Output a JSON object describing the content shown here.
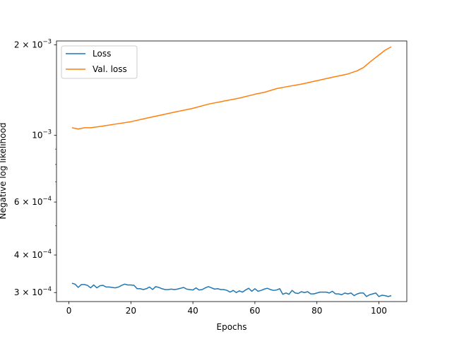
{
  "chart_data": {
    "type": "line",
    "xlabel": "Epochs",
    "ylabel": "Negative log likelihood",
    "yscale": "log",
    "xlim": [
      -4,
      109
    ],
    "ylim": [
      0.00028,
      0.00206
    ],
    "grid": false,
    "legend_position": "top-left",
    "x_ticks": [
      0,
      20,
      40,
      60,
      80,
      100
    ],
    "x_tick_labels": [
      "0",
      "20",
      "40",
      "60",
      "80",
      "100"
    ],
    "y_ticks": [
      0.0003,
      0.0004,
      0.0006,
      0.001,
      0.002
    ],
    "y_tick_labels": [
      {
        "base": "3 × 10",
        "exp": "−4"
      },
      {
        "base": "4 × 10",
        "exp": "−4"
      },
      {
        "base": "6 × 10",
        "exp": "−4"
      },
      {
        "base": "10",
        "exp": "−3"
      },
      {
        "base": "2 × 10",
        "exp": "−3"
      }
    ],
    "y_minor_ticks": [
      0.0005,
      0.0007,
      0.0008,
      0.0009
    ],
    "series": [
      {
        "name": "Loss",
        "color": "#1f77b4",
        "x": [
          1,
          2,
          3,
          4,
          5,
          6,
          7,
          8,
          9,
          10,
          11,
          12,
          13,
          14,
          15,
          16,
          17,
          18,
          19,
          20,
          21,
          22,
          23,
          24,
          25,
          26,
          27,
          28,
          29,
          30,
          31,
          32,
          33,
          34,
          35,
          36,
          37,
          38,
          39,
          40,
          41,
          42,
          43,
          44,
          45,
          46,
          47,
          48,
          49,
          50,
          51,
          52,
          53,
          54,
          55,
          56,
          57,
          58,
          59,
          60,
          61,
          62,
          63,
          64,
          65,
          66,
          67,
          68,
          69,
          70,
          71,
          72,
          73,
          74,
          75,
          76,
          77,
          78,
          79,
          80,
          81,
          82,
          83,
          84,
          85,
          86,
          87,
          88,
          89,
          90,
          91,
          92,
          93,
          94,
          95,
          96,
          97,
          98,
          99,
          100,
          101,
          102,
          103,
          104
        ],
        "y": [
          0.000322,
          0.00032,
          0.000312,
          0.000319,
          0.000319,
          0.000317,
          0.000311,
          0.000318,
          0.000311,
          0.000316,
          0.000317,
          0.000313,
          0.000313,
          0.000312,
          0.000311,
          0.000313,
          0.000317,
          0.00032,
          0.000318,
          0.000318,
          0.000317,
          0.000309,
          0.000309,
          0.000307,
          0.000309,
          0.000313,
          0.000307,
          0.000314,
          0.000312,
          0.000309,
          0.000307,
          0.000307,
          0.000308,
          0.000307,
          0.000308,
          0.00031,
          0.000312,
          0.000308,
          0.000307,
          0.000306,
          0.000311,
          0.000306,
          0.000307,
          0.000311,
          0.000314,
          0.000311,
          0.000308,
          0.000309,
          0.000307,
          0.000307,
          0.000305,
          0.000301,
          0.000305,
          0.0003,
          0.000304,
          0.000301,
          0.000306,
          0.00031,
          0.000303,
          0.000309,
          0.000303,
          0.000305,
          0.000308,
          0.00031,
          0.000307,
          0.000305,
          0.000306,
          0.000309,
          0.000296,
          0.000299,
          0.000296,
          0.000305,
          0.000299,
          0.000298,
          0.000302,
          0.0003,
          0.000302,
          0.000297,
          0.000297,
          0.000299,
          0.000301,
          0.000301,
          0.000301,
          0.000299,
          0.000303,
          0.000297,
          0.000297,
          0.000295,
          0.000299,
          0.000297,
          0.000299,
          0.000293,
          0.000297,
          0.000299,
          0.000299,
          0.000291,
          0.000295,
          0.000297,
          0.000299,
          0.000291,
          0.000294,
          0.000293,
          0.000291,
          0.000293
        ]
      },
      {
        "name": "Val. loss",
        "color": "#ff7f0e",
        "x": [
          1,
          3,
          5,
          7,
          10,
          15,
          20,
          25,
          30,
          35,
          40,
          45,
          50,
          55,
          60,
          63,
          65,
          67,
          70,
          75,
          80,
          85,
          90,
          93,
          95,
          97,
          100,
          102,
          104
        ],
        "y": [
          0.00106,
          0.00105,
          0.00106,
          0.00106,
          0.00107,
          0.00109,
          0.00111,
          0.00114,
          0.00117,
          0.0012,
          0.00123,
          0.00127,
          0.0013,
          0.00133,
          0.00137,
          0.00139,
          0.00141,
          0.00143,
          0.00145,
          0.00148,
          0.00152,
          0.00156,
          0.0016,
          0.00164,
          0.00168,
          0.00175,
          0.00185,
          0.00192,
          0.00197
        ]
      }
    ]
  }
}
